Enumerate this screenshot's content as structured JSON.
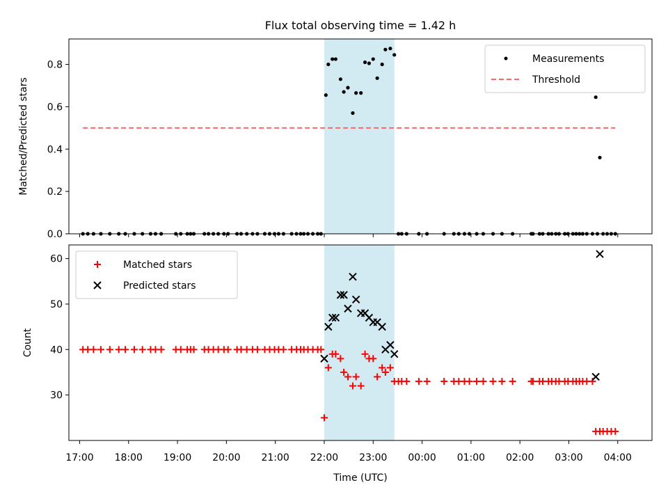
{
  "title": "Flux total observing time = 1.42 h",
  "colors": {
    "highlight": "#add8e6",
    "threshold": "#ff6666",
    "matched": "#ff0000",
    "predicted": "#000000",
    "measurement": "#000000"
  },
  "chart_data": [
    {
      "type": "scatter",
      "ylabel": "Matched/Predicted stars",
      "ylim": [
        0,
        0.92
      ],
      "yticks": [
        0.0,
        0.2,
        0.4,
        0.6,
        0.8
      ],
      "ytick_labels": [
        "0.0",
        "0.2",
        "0.4",
        "0.6",
        "0.8"
      ],
      "highlight_span": [
        "22:00",
        "23:26"
      ],
      "legend_position": "upper right",
      "series": [
        {
          "name": "Measurements",
          "marker": "dot",
          "points": [
            [
              "17:04",
              0
            ],
            [
              "17:10",
              0
            ],
            [
              "17:17",
              0
            ],
            [
              "17:26",
              0
            ],
            [
              "17:37",
              0
            ],
            [
              "17:48",
              0
            ],
            [
              "17:56",
              0
            ],
            [
              "18:07",
              0
            ],
            [
              "18:17",
              0
            ],
            [
              "18:27",
              0
            ],
            [
              "18:33",
              0
            ],
            [
              "18:40",
              0
            ],
            [
              "18:58",
              0
            ],
            [
              "19:04",
              0
            ],
            [
              "19:12",
              0
            ],
            [
              "19:16",
              0
            ],
            [
              "19:20",
              0
            ],
            [
              "19:33",
              0
            ],
            [
              "19:38",
              0
            ],
            [
              "19:44",
              0
            ],
            [
              "19:50",
              0
            ],
            [
              "19:57",
              0
            ],
            [
              "20:02",
              0
            ],
            [
              "20:13",
              0
            ],
            [
              "20:18",
              0
            ],
            [
              "20:25",
              0
            ],
            [
              "20:32",
              0
            ],
            [
              "20:38",
              0
            ],
            [
              "20:47",
              0
            ],
            [
              "20:53",
              0
            ],
            [
              "20:59",
              0
            ],
            [
              "21:04",
              0
            ],
            [
              "21:10",
              0
            ],
            [
              "21:20",
              0
            ],
            [
              "21:26",
              0
            ],
            [
              "21:31",
              0
            ],
            [
              "21:35",
              0
            ],
            [
              "21:40",
              0
            ],
            [
              "21:46",
              0
            ],
            [
              "21:52",
              0
            ],
            [
              "21:56",
              0
            ],
            [
              "22:02",
              0.655
            ],
            [
              "22:05",
              0.8
            ],
            [
              "22:10",
              0.825
            ],
            [
              "22:14",
              0.825
            ],
            [
              "22:20",
              0.73
            ],
            [
              "22:24",
              0.67
            ],
            [
              "22:29",
              0.69
            ],
            [
              "22:35",
              0.57
            ],
            [
              "22:39",
              0.665
            ],
            [
              "22:45",
              0.665
            ],
            [
              "22:50",
              0.81
            ],
            [
              "22:55",
              0.805
            ],
            [
              "23:00",
              0.825
            ],
            [
              "23:05",
              0.735
            ],
            [
              "23:11",
              0.8
            ],
            [
              "23:15",
              0.87
            ],
            [
              "23:21",
              0.875
            ],
            [
              "23:26",
              0.845
            ],
            [
              "23:31",
              0
            ],
            [
              "23:35",
              0
            ],
            [
              "23:41",
              0
            ],
            [
              "23:56",
              0
            ],
            [
              "00:06",
              0
            ],
            [
              "00:27",
              0
            ],
            [
              "00:39",
              0
            ],
            [
              "00:45",
              0
            ],
            [
              "00:52",
              0
            ],
            [
              "00:58",
              0
            ],
            [
              "01:07",
              0
            ],
            [
              "01:15",
              0
            ],
            [
              "01:27",
              0
            ],
            [
              "01:38",
              0
            ],
            [
              "01:51",
              0
            ],
            [
              "02:14",
              0
            ],
            [
              "02:16",
              0
            ],
            [
              "02:24",
              0
            ],
            [
              "02:28",
              0
            ],
            [
              "02:35",
              0
            ],
            [
              "02:39",
              0
            ],
            [
              "02:44",
              0
            ],
            [
              "02:48",
              0
            ],
            [
              "02:55",
              0
            ],
            [
              "02:59",
              0
            ],
            [
              "03:05",
              0
            ],
            [
              "03:09",
              0
            ],
            [
              "03:13",
              0
            ],
            [
              "03:17",
              0
            ],
            [
              "03:22",
              0
            ],
            [
              "03:29",
              0
            ],
            [
              "03:35",
              0
            ],
            [
              "03:42",
              0
            ],
            [
              "03:47",
              0
            ],
            [
              "03:52",
              0
            ],
            [
              "03:57",
              0
            ],
            [
              "03:33",
              0.645
            ],
            [
              "03:38",
              0.36
            ]
          ]
        },
        {
          "name": "Threshold",
          "marker": "dashed-line",
          "x": [
            "17:04",
            "03:57"
          ],
          "y": [
            0.5,
            0.5
          ]
        }
      ]
    },
    {
      "type": "scatter",
      "ylabel": "Count",
      "xlabel": "Time (UTC)",
      "ylim": [
        20,
        63
      ],
      "yticks": [
        30,
        40,
        50,
        60
      ],
      "ytick_labels": [
        "30",
        "40",
        "50",
        "60"
      ],
      "xticks": [
        "17:00",
        "18:00",
        "19:00",
        "20:00",
        "21:00",
        "22:00",
        "23:00",
        "00:00",
        "01:00",
        "02:00",
        "03:00",
        "04:00"
      ],
      "highlight_span": [
        "22:00",
        "23:26"
      ],
      "legend_position": "upper left",
      "series": [
        {
          "name": "Matched stars",
          "marker": "plus",
          "points": [
            [
              "17:04",
              40
            ],
            [
              "17:10",
              40
            ],
            [
              "17:17",
              40
            ],
            [
              "17:26",
              40
            ],
            [
              "17:37",
              40
            ],
            [
              "17:48",
              40
            ],
            [
              "17:56",
              40
            ],
            [
              "18:07",
              40
            ],
            [
              "18:17",
              40
            ],
            [
              "18:27",
              40
            ],
            [
              "18:33",
              40
            ],
            [
              "18:40",
              40
            ],
            [
              "18:58",
              40
            ],
            [
              "19:04",
              40
            ],
            [
              "19:12",
              40
            ],
            [
              "19:16",
              40
            ],
            [
              "19:20",
              40
            ],
            [
              "19:33",
              40
            ],
            [
              "19:38",
              40
            ],
            [
              "19:44",
              40
            ],
            [
              "19:50",
              40
            ],
            [
              "19:57",
              40
            ],
            [
              "20:02",
              40
            ],
            [
              "20:13",
              40
            ],
            [
              "20:18",
              40
            ],
            [
              "20:25",
              40
            ],
            [
              "20:32",
              40
            ],
            [
              "20:38",
              40
            ],
            [
              "20:47",
              40
            ],
            [
              "20:53",
              40
            ],
            [
              "20:59",
              40
            ],
            [
              "21:04",
              40
            ],
            [
              "21:10",
              40
            ],
            [
              "21:20",
              40
            ],
            [
              "21:26",
              40
            ],
            [
              "21:31",
              40
            ],
            [
              "21:35",
              40
            ],
            [
              "21:40",
              40
            ],
            [
              "21:46",
              40
            ],
            [
              "21:52",
              40
            ],
            [
              "21:56",
              40
            ],
            [
              "22:00",
              25
            ],
            [
              "22:05",
              36
            ],
            [
              "22:10",
              39
            ],
            [
              "22:14",
              39
            ],
            [
              "22:20",
              38
            ],
            [
              "22:24",
              35
            ],
            [
              "22:29",
              34
            ],
            [
              "22:35",
              32
            ],
            [
              "22:39",
              34
            ],
            [
              "22:45",
              32
            ],
            [
              "22:50",
              39
            ],
            [
              "22:55",
              38
            ],
            [
              "23:00",
              38
            ],
            [
              "23:05",
              34
            ],
            [
              "23:11",
              36
            ],
            [
              "23:15",
              35
            ],
            [
              "23:21",
              36
            ],
            [
              "23:26",
              33
            ],
            [
              "23:31",
              33
            ],
            [
              "23:35",
              33
            ],
            [
              "23:41",
              33
            ],
            [
              "23:56",
              33
            ],
            [
              "00:06",
              33
            ],
            [
              "00:27",
              33
            ],
            [
              "00:39",
              33
            ],
            [
              "00:45",
              33
            ],
            [
              "00:52",
              33
            ],
            [
              "00:58",
              33
            ],
            [
              "01:07",
              33
            ],
            [
              "01:15",
              33
            ],
            [
              "01:27",
              33
            ],
            [
              "01:38",
              33
            ],
            [
              "01:51",
              33
            ],
            [
              "02:14",
              33
            ],
            [
              "02:16",
              33
            ],
            [
              "02:24",
              33
            ],
            [
              "02:28",
              33
            ],
            [
              "02:35",
              33
            ],
            [
              "02:39",
              33
            ],
            [
              "02:44",
              33
            ],
            [
              "02:48",
              33
            ],
            [
              "02:55",
              33
            ],
            [
              "02:59",
              33
            ],
            [
              "03:05",
              33
            ],
            [
              "03:09",
              33
            ],
            [
              "03:13",
              33
            ],
            [
              "03:17",
              33
            ],
            [
              "03:22",
              33
            ],
            [
              "03:29",
              33
            ],
            [
              "03:33",
              22
            ],
            [
              "03:38",
              22
            ],
            [
              "03:42",
              22
            ],
            [
              "03:47",
              22
            ],
            [
              "03:52",
              22
            ],
            [
              "03:57",
              22
            ]
          ]
        },
        {
          "name": "Predicted stars",
          "marker": "x",
          "points": [
            [
              "22:00",
              38
            ],
            [
              "22:05",
              45
            ],
            [
              "22:10",
              47
            ],
            [
              "22:14",
              47
            ],
            [
              "22:20",
              52
            ],
            [
              "22:24",
              52
            ],
            [
              "22:29",
              49
            ],
            [
              "22:35",
              56
            ],
            [
              "22:39",
              51
            ],
            [
              "22:45",
              48
            ],
            [
              "22:50",
              48
            ],
            [
              "22:55",
              47
            ],
            [
              "23:00",
              46
            ],
            [
              "23:05",
              46
            ],
            [
              "23:11",
              45
            ],
            [
              "23:15",
              40
            ],
            [
              "23:21",
              41
            ],
            [
              "23:26",
              39
            ],
            [
              "03:33",
              34
            ],
            [
              "03:38",
              61
            ]
          ]
        }
      ]
    }
  ]
}
